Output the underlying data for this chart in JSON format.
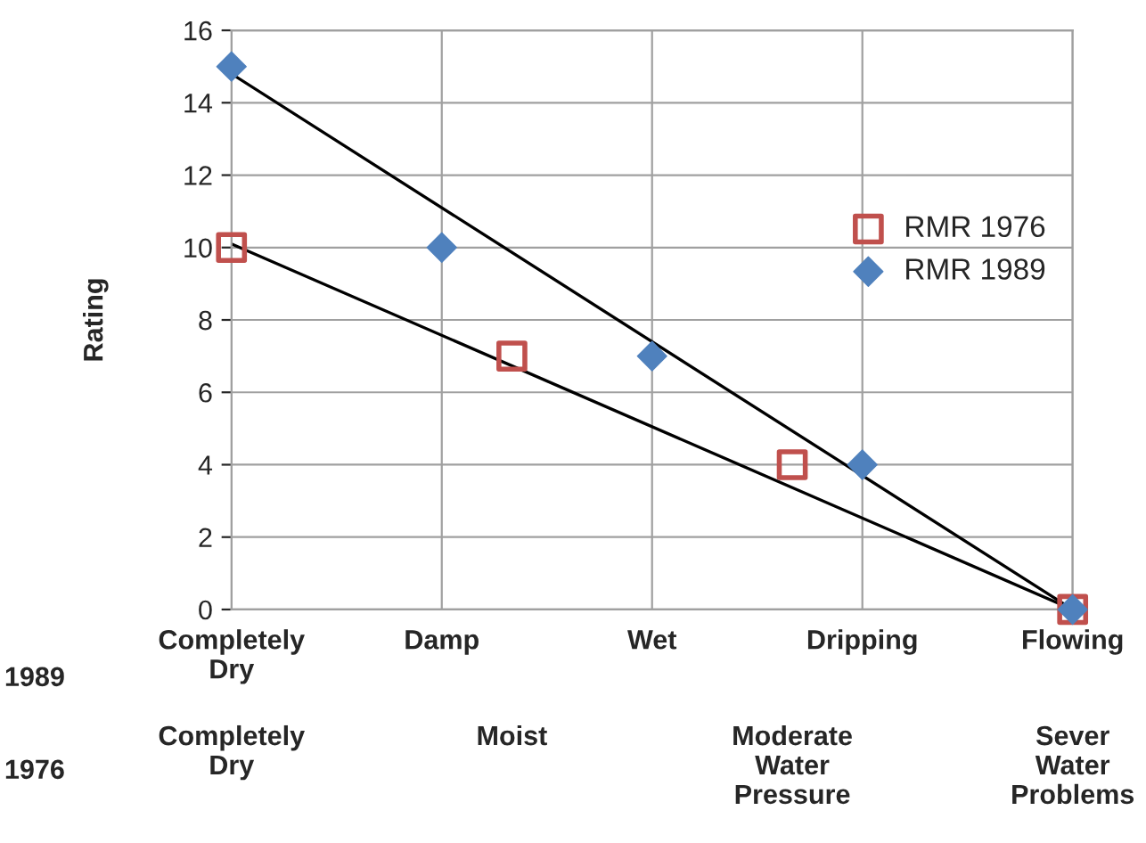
{
  "chart_data": {
    "type": "scatter",
    "ylabel": "Rating",
    "xlabel": "1989",
    "x2label": "1976",
    "categories": [
      "Completely Dry",
      null,
      null,
      "Damp",
      null,
      null,
      "Wet",
      null,
      null,
      "Dripping",
      null,
      null,
      "Flowing"
    ],
    "annotations": [
      "Completely Dry",
      "Moist",
      "Moderate Water Pressure",
      "Sever Water Problems"
    ],
    "ylim": [
      0,
      16
    ],
    "yticks": [
      0,
      2,
      4,
      6,
      8,
      10,
      12,
      14,
      16
    ],
    "grid": true,
    "legend": "right",
    "series": [
      {
        "type": "line",
        "color": "#000000",
        "marker": "none",
        "values": [
          10.1,
          null,
          null,
          null,
          null,
          null,
          null,
          null,
          null,
          null,
          null,
          null,
          0
        ]
      },
      {
        "type": "line",
        "color": "#000000",
        "marker": "none",
        "values": [
          14.8,
          null,
          null,
          null,
          null,
          null,
          null,
          null,
          null,
          null,
          null,
          null,
          0
        ]
      },
      {
        "name": "RMR 1976",
        "color": "#c0504d",
        "marker": "square",
        "values": [
          10,
          null,
          null,
          null,
          7,
          null,
          null,
          null,
          4,
          null,
          null,
          null,
          0
        ]
      },
      {
        "name": "RMR 1989",
        "color": "#4f81bd",
        "marker": "diamond",
        "values": [
          15,
          null,
          null,
          10,
          null,
          null,
          7,
          null,
          null,
          4,
          null,
          null,
          0
        ]
      }
    ]
  }
}
